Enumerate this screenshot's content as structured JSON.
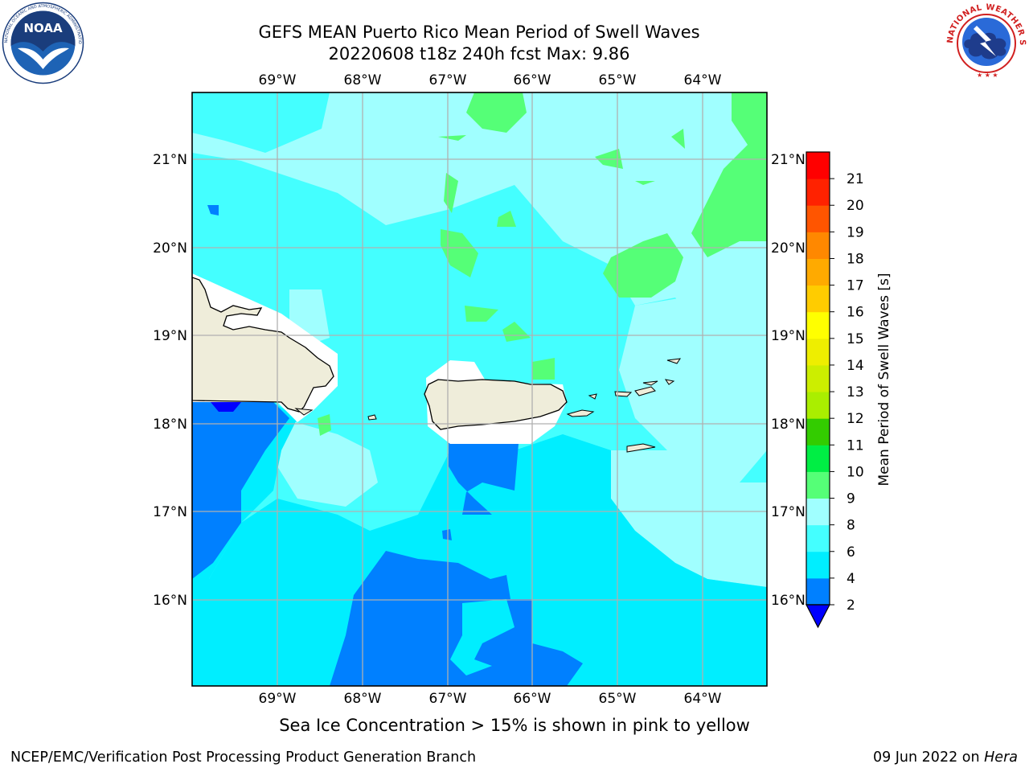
{
  "header": {
    "title_line1": "GEFS MEAN Puerto Rico Mean Period of Swell Waves",
    "title_line2": "20220608 t18z 240h fcst   Max: 9.86"
  },
  "logos": {
    "left": {
      "icon": "noaa-logo-icon",
      "text": "NOAA",
      "ring_text": "NATIONAL OCEANIC AND ATMOSPHERIC ADMINISTRATION · U.S. DEPARTMENT OF COMMERCE"
    },
    "right": {
      "icon": "nws-logo-icon",
      "ring_text": "NATIONAL WEATHER SERVICE"
    }
  },
  "map": {
    "lon_labels": [
      "69°W",
      "68°W",
      "67°W",
      "66°W",
      "65°W",
      "64°W"
    ],
    "lat_labels": [
      "21°N",
      "20°N",
      "19°N",
      "18°N",
      "17°N",
      "16°N"
    ],
    "colors": {
      "bin_2_4": "#0080ff",
      "bin_4_6": "#00eeff",
      "bin_6_8": "#44ffff",
      "bin_8_9": "#a0ffff",
      "bin_9_10": "#55ff77",
      "land": "#efedda",
      "below_range": "#0000ff",
      "grid": "#b0b0b0"
    }
  },
  "colorbar": {
    "label": "Mean Period of Swell Waves [s]",
    "ticks": [
      "2",
      "4",
      "6",
      "8",
      "9",
      "10",
      "11",
      "12",
      "13",
      "14",
      "15",
      "16",
      "17",
      "18",
      "19",
      "20",
      "21"
    ],
    "colors": [
      "#0080ff",
      "#00eeff",
      "#44ffff",
      "#a0ffff",
      "#55ff77",
      "#00ee44",
      "#33cc00",
      "#aaee00",
      "#ccee00",
      "#eeee00",
      "#ffff00",
      "#ffcc00",
      "#ffaa00",
      "#ff8800",
      "#ff5500",
      "#ff2200",
      "#ff0000"
    ],
    "extend_color": "#0000ff"
  },
  "footer": {
    "note": "Sea Ice Concentration > 15% is shown in pink to yellow",
    "left": "NCEP/EMC/Verification Post Processing Product Generation Branch",
    "right_prefix": "09 Jun 2022 on ",
    "right_host": "Hera"
  }
}
